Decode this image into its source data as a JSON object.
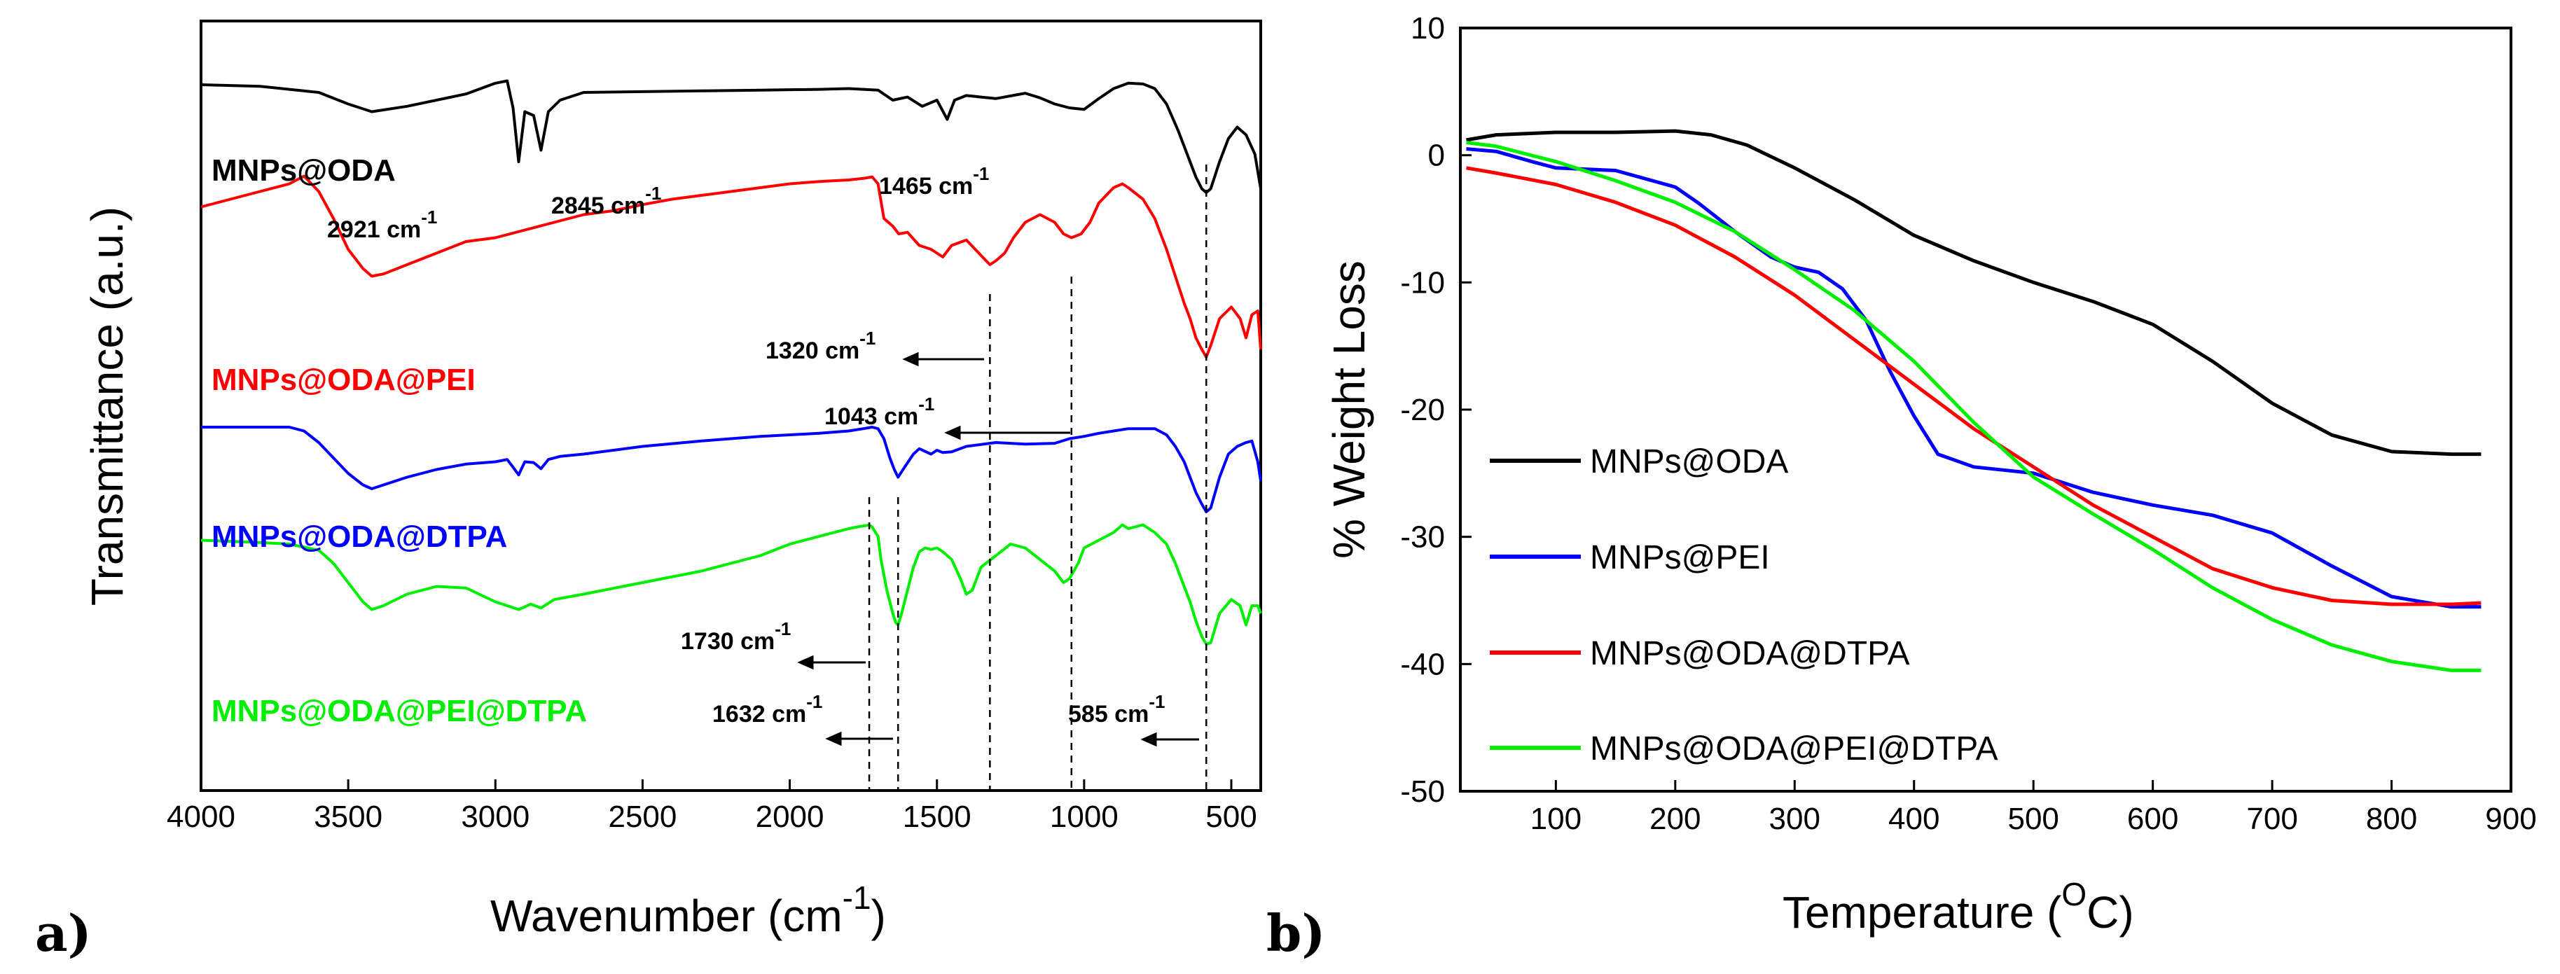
{
  "chart_data": [
    {
      "type": "line",
      "panel_label": "a)",
      "title": "",
      "xlabel": "Wavenumber (cm",
      "xlabel_sup": "-1",
      "xlabel_end": ")",
      "ylabel": "Transmittance (a.u.)",
      "xlim": [
        4000,
        400
      ],
      "x_ticks": [
        "4000",
        "3500",
        "3000",
        "2500",
        "2000",
        "1500",
        "1000",
        "500"
      ],
      "x_tick_values": [
        4000,
        3500,
        3000,
        2500,
        2000,
        1500,
        1000,
        500
      ],
      "y_ticks": [],
      "grid": false,
      "series": [
        {
          "name": "MNPs@ODA",
          "color": "#000000",
          "x": [
            4000,
            3800,
            3600,
            3500,
            3420,
            3300,
            3100,
            3000,
            2960,
            2940,
            2921,
            2900,
            2870,
            2845,
            2820,
            2780,
            2700,
            2500,
            2300,
            2100,
            1900,
            1800,
            1700,
            1650,
            1600,
            1550,
            1500,
            1465,
            1440,
            1400,
            1300,
            1200,
            1150,
            1100,
            1050,
            1000,
            950,
            900,
            850,
            800,
            760,
            720,
            680,
            650,
            620,
            600,
            585,
            570,
            540,
            510,
            480,
            450,
            420,
            400
          ],
          "y": [
            4,
            3.8,
            3,
            1.5,
            0.5,
            1.2,
            2.8,
            4.2,
            4.5,
            1,
            -6,
            0.5,
            0,
            -4.5,
            0.5,
            2,
            3,
            3.1,
            3.2,
            3.3,
            3.4,
            3.5,
            3.3,
            2,
            2.4,
            1.2,
            2.0,
            -0.5,
            2.0,
            2.6,
            2.2,
            2.9,
            2.3,
            1.5,
            1.0,
            0.8,
            2.2,
            3.5,
            4.2,
            4.1,
            3.5,
            1.5,
            -2,
            -5,
            -8,
            -9.5,
            -10,
            -9.5,
            -6,
            -3,
            -1.5,
            -2.5,
            -5,
            -9.5
          ]
        },
        {
          "name": "MNPs@ODA@PEI",
          "color": "#ff0000",
          "x": [
            4000,
            3900,
            3800,
            3700,
            3650,
            3600,
            3550,
            3500,
            3450,
            3420,
            3380,
            3300,
            3200,
            3100,
            3000,
            2900,
            2800,
            2700,
            2600,
            2500,
            2400,
            2300,
            2200,
            2100,
            2000,
            1900,
            1800,
            1750,
            1720,
            1700,
            1680,
            1650,
            1630,
            1600,
            1560,
            1520,
            1500,
            1480,
            1450,
            1400,
            1370,
            1340,
            1320,
            1300,
            1270,
            1240,
            1200,
            1150,
            1100,
            1070,
            1043,
            1010,
            980,
            950,
            900,
            870,
            850,
            800,
            760,
            720,
            690,
            660,
            640,
            620,
            600,
            585,
            570,
            540,
            500,
            470,
            450,
            430,
            410,
            400
          ],
          "y": [
            9.5,
            10.5,
            11.5,
            12.5,
            13.5,
            11.5,
            8,
            4,
            1.5,
            0.5,
            0.8,
            2,
            3.5,
            5,
            5.5,
            6.5,
            7.5,
            8.5,
            9,
            9.8,
            10.5,
            11,
            11.5,
            12,
            12.5,
            12.8,
            13,
            13.2,
            13.4,
            12.5,
            8,
            7,
            6,
            6.2,
            4.5,
            4,
            3.5,
            3,
            4.5,
            5.2,
            4,
            2.8,
            2,
            2.5,
            3.5,
            5.5,
            7.5,
            8.5,
            7.5,
            6,
            5.5,
            6,
            7.5,
            10,
            12,
            12.5,
            12,
            10.5,
            8,
            4,
            0.5,
            -3,
            -5,
            -7.5,
            -9,
            -10,
            -8.5,
            -5,
            -3.5,
            -5,
            -7.5,
            -4.5,
            -4,
            -9
          ]
        },
        {
          "name": "MNPs@ODA@DTPA",
          "color": "#0000ff",
          "x": [
            4000,
            3800,
            3700,
            3650,
            3600,
            3550,
            3500,
            3450,
            3420,
            3380,
            3300,
            3200,
            3100,
            3000,
            2960,
            2940,
            2921,
            2900,
            2870,
            2845,
            2820,
            2780,
            2700,
            2500,
            2300,
            2100,
            1900,
            1800,
            1750,
            1720,
            1700,
            1680,
            1660,
            1645,
            1632,
            1610,
            1580,
            1560,
            1520,
            1500,
            1480,
            1450,
            1400,
            1300,
            1200,
            1100,
            1050,
            1000,
            950,
            900,
            850,
            800,
            760,
            720,
            690,
            660,
            640,
            620,
            600,
            585,
            570,
            540,
            510,
            480,
            450,
            430,
            410,
            400
          ],
          "y": [
            3,
            3,
            3,
            2.5,
            1,
            -1,
            -3,
            -4.5,
            -5,
            -4.5,
            -3.5,
            -2.5,
            -1.8,
            -1.5,
            -1.2,
            -2.2,
            -3.2,
            -1.5,
            -1.6,
            -2.4,
            -1.2,
            -0.8,
            -0.5,
            0.5,
            1.2,
            1.8,
            2.2,
            2.5,
            2.8,
            3,
            2.8,
            1.5,
            -1,
            -2.5,
            -3.5,
            -2.2,
            -0.5,
            0.2,
            -0.5,
            0,
            -0.3,
            -0.2,
            0.5,
            1,
            0.8,
            0.9,
            1.5,
            1.8,
            2.2,
            2.5,
            2.8,
            2.8,
            2.8,
            2,
            0.5,
            -1.5,
            -3.5,
            -5.5,
            -7,
            -8,
            -7.5,
            -3.5,
            -0.5,
            0.5,
            1,
            1.2,
            -1.5,
            -4
          ]
        },
        {
          "name": "MNPs@ODA@PEI@DTPA",
          "color": "#00ee00",
          "x": [
            4000,
            3800,
            3700,
            3600,
            3550,
            3500,
            3450,
            3420,
            3380,
            3300,
            3200,
            3100,
            3000,
            2960,
            2921,
            2880,
            2845,
            2800,
            2700,
            2500,
            2300,
            2100,
            2000,
            1900,
            1800,
            1760,
            1740,
            1730,
            1720,
            1700,
            1690,
            1670,
            1650,
            1640,
            1632,
            1620,
            1600,
            1580,
            1560,
            1540,
            1520,
            1500,
            1480,
            1450,
            1420,
            1400,
            1380,
            1350,
            1300,
            1250,
            1200,
            1150,
            1100,
            1070,
            1050,
            1020,
            1000,
            950,
            900,
            870,
            850,
            800,
            760,
            720,
            690,
            660,
            640,
            620,
            600,
            585,
            570,
            540,
            500,
            470,
            450,
            430,
            410,
            400
          ],
          "y": [
            6.5,
            6.2,
            6,
            5.2,
            3.5,
            1,
            -1.5,
            -2.5,
            -2,
            -0.5,
            0.5,
            0.3,
            -1.5,
            -2,
            -2.5,
            -1.8,
            -2.3,
            -1.2,
            -0.5,
            1,
            2.5,
            4.5,
            6,
            7,
            8,
            8.3,
            8.4,
            8.5,
            8.2,
            7,
            4,
            0,
            -3,
            -4.2,
            -4.5,
            -3,
            0,
            3,
            5,
            5.5,
            5.3,
            5.5,
            5,
            4,
            1.5,
            -0.5,
            0,
            3,
            4.5,
            6,
            5.5,
            4,
            2.5,
            1,
            1.5,
            3.5,
            5.5,
            6.5,
            7.5,
            8.5,
            8,
            8.5,
            7.5,
            6,
            3.5,
            0.5,
            -1.5,
            -4,
            -6,
            -7,
            -6.8,
            -3,
            -1.2,
            -2,
            -4.5,
            -2,
            -2,
            -3
          ]
        }
      ],
      "annotations": [
        {
          "text": "2921 cm",
          "sup": "-1"
        },
        {
          "text": "2845 cm",
          "sup": "-1"
        },
        {
          "text": "1465 cm",
          "sup": "-1"
        },
        {
          "text": "1320 cm",
          "sup": "-1"
        },
        {
          "text": "1043 cm",
          "sup": "-1"
        },
        {
          "text": "1730 cm",
          "sup": "-1"
        },
        {
          "text": "1632 cm",
          "sup": "-1"
        },
        {
          "text": "585 cm",
          "sup": "-1"
        }
      ],
      "marker_lines": [
        1730,
        1632,
        1320,
        1043,
        585
      ]
    },
    {
      "type": "line",
      "panel_label": "b)",
      "title": "",
      "xlabel": "Temperature (",
      "xlabel_sup": "O",
      "xlabel_end": "C)",
      "ylabel": "% Weight Loss",
      "xlim": [
        20,
        900
      ],
      "ylim": [
        -50,
        10
      ],
      "x_ticks": [
        "100",
        "200",
        "300",
        "400",
        "500",
        "600",
        "700",
        "800",
        "900"
      ],
      "x_tick_values": [
        100,
        200,
        300,
        400,
        500,
        600,
        700,
        800,
        900
      ],
      "y_ticks": [
        "10",
        "0",
        "-10",
        "-20",
        "-30",
        "-40",
        "-50"
      ],
      "y_tick_values": [
        10,
        0,
        -10,
        -20,
        -30,
        -40,
        -50
      ],
      "grid": false,
      "legend_position": "lower-left",
      "series": [
        {
          "name": "MNPs@ODA",
          "color": "#000000",
          "x": [
            25,
            50,
            100,
            150,
            200,
            230,
            260,
            300,
            350,
            400,
            450,
            500,
            550,
            600,
            650,
            700,
            750,
            800,
            850,
            875
          ],
          "y": [
            1.2,
            1.6,
            1.8,
            1.8,
            1.9,
            1.6,
            0.8,
            -1,
            -3.5,
            -6.3,
            -8.3,
            -10,
            -11.5,
            -13.3,
            -16.2,
            -19.5,
            -22,
            -23.3,
            -23.5,
            -23.5
          ]
        },
        {
          "name": "MNPs@PEI",
          "color": "#0000ff",
          "x": [
            25,
            50,
            80,
            100,
            150,
            200,
            220,
            250,
            280,
            300,
            320,
            340,
            360,
            380,
            400,
            420,
            450,
            500,
            550,
            600,
            650,
            700,
            750,
            800,
            850,
            875
          ],
          "y": [
            0.5,
            0.3,
            -0.5,
            -1,
            -1.2,
            -2.5,
            -3.8,
            -6,
            -8,
            -8.8,
            -9.2,
            -10.5,
            -13,
            -17,
            -20.5,
            -23.5,
            -24.5,
            -25,
            -26.5,
            -27.5,
            -28.3,
            -29.7,
            -32.3,
            -34.7,
            -35.5,
            -35.5
          ]
        },
        {
          "name": "MNPs@ODA@DTPA",
          "color": "#ff0000",
          "x": [
            25,
            50,
            100,
            150,
            200,
            250,
            300,
            350,
            400,
            450,
            500,
            550,
            600,
            650,
            700,
            750,
            800,
            850,
            875
          ],
          "y": [
            -1,
            -1.4,
            -2.3,
            -3.7,
            -5.5,
            -8,
            -11,
            -14.5,
            -18,
            -21.5,
            -24.5,
            -27.5,
            -30,
            -32.5,
            -34,
            -35,
            -35.3,
            -35.3,
            -35.2
          ]
        },
        {
          "name": "MNPs@ODA@PEI@DTPA",
          "color": "#00ee00",
          "x": [
            25,
            50,
            100,
            150,
            200,
            250,
            300,
            350,
            400,
            450,
            500,
            550,
            600,
            650,
            700,
            750,
            800,
            850,
            875
          ],
          "y": [
            1,
            0.7,
            -0.5,
            -2,
            -3.7,
            -6,
            -9,
            -12.2,
            -16.2,
            -21,
            -25.3,
            -28.2,
            -31,
            -34,
            -36.5,
            -38.5,
            -39.8,
            -40.5,
            -40.5
          ]
        }
      ]
    }
  ]
}
